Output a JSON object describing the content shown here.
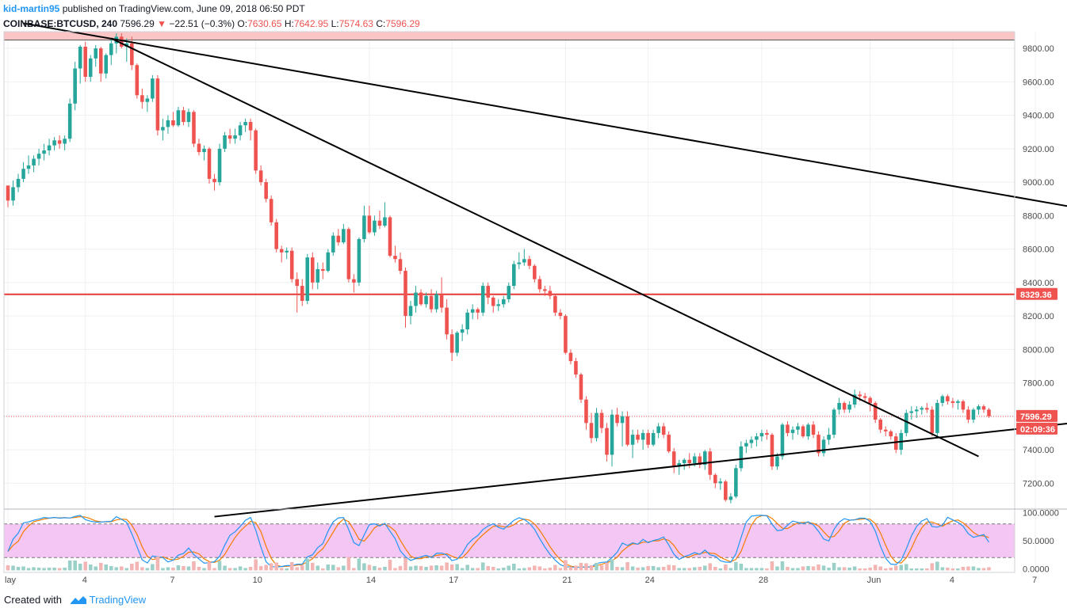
{
  "header": {
    "author": "kid-martin95",
    "published_text": "published on TradingView.com, June 09, 2018 06:50 PDT",
    "symbol": "COINBASE:BTCUSD, 240",
    "last": "7596.29",
    "change_arrow": "▼",
    "change": "−22.51 (−0.3%)",
    "o_label": "O:",
    "o_value": "7630.65",
    "h_label": "H:",
    "h_value": "7642.95",
    "l_label": "L:",
    "l_value": "7574.63",
    "c_label": "C:",
    "c_value": "7596.29"
  },
  "footer": {
    "created_with": "Created with",
    "brand": "TradingView",
    "logo_icon": "tradingview-logo-icon"
  },
  "colors": {
    "up": "#26a69a",
    "down": "#ef5350",
    "resistance_band": "#f9c5c5",
    "support_line": "#e53935",
    "stoch_k": "#2196f3",
    "stoch_d": "#f57c00",
    "stoch_band": "#f3c6f3",
    "volume": "#9ad0c8"
  },
  "chart_data": [
    {
      "type": "candlestick",
      "title": "COINBASE:BTCUSD, 240",
      "y_axis_side": "right",
      "ylim": [
        7050,
        9900
      ],
      "y_ticks": [
        "9800.00",
        "9600.00",
        "9400.00",
        "9200.00",
        "9000.00",
        "8800.00",
        "8600.00",
        "8400.00",
        "8200.00",
        "8000.00",
        "7800.00",
        "7600.00",
        "7400.00",
        "7200.00"
      ],
      "x_labels": [
        {
          "label": "lay",
          "index": 0
        },
        {
          "label": "4",
          "index": 15
        },
        {
          "label": "7",
          "index": 32
        },
        {
          "label": "10",
          "index": 48
        },
        {
          "label": "14",
          "index": 70
        },
        {
          "label": "17",
          "index": 86
        },
        {
          "label": "21",
          "index": 108
        },
        {
          "label": "24",
          "index": 124
        },
        {
          "label": "28",
          "index": 146
        },
        {
          "label": "Jun",
          "index": 167
        },
        {
          "label": "4",
          "index": 183
        },
        {
          "label": "7",
          "index": 199
        }
      ],
      "candles_approx": [
        [
          8980,
          8980,
          8850,
          8890
        ],
        [
          8890,
          9010,
          8860,
          8970
        ],
        [
          8970,
          9050,
          8940,
          9020
        ],
        [
          9020,
          9120,
          9000,
          9080
        ],
        [
          9080,
          9160,
          9050,
          9100
        ],
        [
          9100,
          9160,
          9060,
          9140
        ],
        [
          9140,
          9200,
          9100,
          9170
        ],
        [
          9170,
          9230,
          9130,
          9190
        ],
        [
          9190,
          9260,
          9160,
          9220
        ],
        [
          9220,
          9270,
          9190,
          9250
        ],
        [
          9250,
          9280,
          9200,
          9230
        ],
        [
          9230,
          9280,
          9190,
          9260
        ],
        [
          9260,
          9500,
          9240,
          9470
        ],
        [
          9470,
          9720,
          9430,
          9680
        ],
        [
          9680,
          9820,
          9590,
          9810
        ],
        [
          9810,
          9840,
          9600,
          9630
        ],
        [
          9630,
          9760,
          9600,
          9740
        ],
        [
          9740,
          9820,
          9690,
          9800
        ],
        [
          9800,
          9810,
          9600,
          9650
        ],
        [
          9650,
          9770,
          9620,
          9760
        ],
        [
          9760,
          9860,
          9700,
          9830
        ],
        [
          9830,
          9890,
          9770,
          9870
        ],
        [
          9870,
          9890,
          9800,
          9810
        ],
        [
          9810,
          9860,
          9720,
          9830
        ],
        [
          9830,
          9870,
          9670,
          9700
        ],
        [
          9700,
          9710,
          9500,
          9520
        ],
        [
          9520,
          9560,
          9440,
          9480
        ],
        [
          9480,
          9520,
          9420,
          9500
        ],
        [
          9500,
          9640,
          9480,
          9620
        ],
        [
          9620,
          9640,
          9280,
          9310
        ],
        [
          9310,
          9380,
          9250,
          9330
        ],
        [
          9330,
          9400,
          9290,
          9370
        ],
        [
          9370,
          9420,
          9330,
          9340
        ],
        [
          9340,
          9450,
          9330,
          9430
        ],
        [
          9430,
          9450,
          9340,
          9360
        ],
        [
          9360,
          9440,
          9330,
          9420
        ],
        [
          9420,
          9430,
          9210,
          9230
        ],
        [
          9230,
          9260,
          9160,
          9180
        ],
        [
          9180,
          9220,
          9130,
          9200
        ],
        [
          9200,
          9210,
          8990,
          9020
        ],
        [
          9020,
          9050,
          8950,
          9000
        ],
        [
          9000,
          9230,
          8980,
          9200
        ],
        [
          9200,
          9300,
          9180,
          9280
        ],
        [
          9280,
          9320,
          9230,
          9260
        ],
        [
          9260,
          9320,
          9230,
          9280
        ],
        [
          9280,
          9360,
          9250,
          9340
        ],
        [
          9340,
          9380,
          9300,
          9360
        ],
        [
          9360,
          9380,
          9250,
          9310
        ],
        [
          9310,
          9320,
          9050,
          9070
        ],
        [
          9070,
          9100,
          8980,
          9000
        ],
        [
          9000,
          9020,
          8880,
          8900
        ],
        [
          8900,
          8920,
          8740,
          8760
        ],
        [
          8760,
          8780,
          8580,
          8600
        ],
        [
          8600,
          8620,
          8520,
          8580
        ],
        [
          8580,
          8610,
          8540,
          8590
        ],
        [
          8590,
          8610,
          8400,
          8420
        ],
        [
          8420,
          8460,
          8220,
          8380
        ],
        [
          8380,
          8420,
          8260,
          8290
        ],
        [
          8290,
          8570,
          8270,
          8550
        ],
        [
          8550,
          8580,
          8360,
          8400
        ],
        [
          8400,
          8520,
          8360,
          8480
        ],
        [
          8480,
          8520,
          8420,
          8470
        ],
        [
          8470,
          8600,
          8460,
          8580
        ],
        [
          8580,
          8700,
          8560,
          8680
        ],
        [
          8680,
          8720,
          8620,
          8640
        ],
        [
          8640,
          8750,
          8630,
          8720
        ],
        [
          8720,
          8730,
          8400,
          8420
        ],
        [
          8420,
          8450,
          8340,
          8400
        ],
        [
          8400,
          8670,
          8380,
          8660
        ],
        [
          8660,
          8860,
          8640,
          8800
        ],
        [
          8800,
          8860,
          8690,
          8700
        ],
        [
          8700,
          8800,
          8680,
          8770
        ],
        [
          8770,
          8830,
          8720,
          8740
        ],
        [
          8740,
          8880,
          8730,
          8790
        ],
        [
          8790,
          8800,
          8550,
          8560
        ],
        [
          8560,
          8620,
          8520,
          8540
        ],
        [
          8540,
          8580,
          8450,
          8470
        ],
        [
          8470,
          8490,
          8130,
          8200
        ],
        [
          8200,
          8290,
          8150,
          8260
        ],
        [
          8260,
          8380,
          8220,
          8340
        ],
        [
          8340,
          8360,
          8260,
          8270
        ],
        [
          8270,
          8340,
          8250,
          8320
        ],
        [
          8320,
          8360,
          8220,
          8240
        ],
        [
          8240,
          8350,
          8220,
          8330
        ],
        [
          8330,
          8430,
          8220,
          8250
        ],
        [
          8250,
          8300,
          8060,
          8090
        ],
        [
          8090,
          8120,
          7930,
          7980
        ],
        [
          7980,
          8110,
          7960,
          8100
        ],
        [
          8100,
          8150,
          8050,
          8120
        ],
        [
          8120,
          8240,
          8090,
          8220
        ],
        [
          8220,
          8270,
          8180,
          8240
        ],
        [
          8240,
          8250,
          8180,
          8220
        ],
        [
          8220,
          8400,
          8200,
          8380
        ],
        [
          8380,
          8400,
          8270,
          8310
        ],
        [
          8310,
          8320,
          8220,
          8260
        ],
        [
          8260,
          8300,
          8230,
          8270
        ],
        [
          8270,
          8320,
          8250,
          8300
        ],
        [
          8300,
          8400,
          8280,
          8380
        ],
        [
          8380,
          8530,
          8360,
          8510
        ],
        [
          8510,
          8580,
          8480,
          8520
        ],
        [
          8520,
          8600,
          8500,
          8540
        ],
        [
          8540,
          8560,
          8480,
          8500
        ],
        [
          8500,
          8510,
          8400,
          8420
        ],
        [
          8420,
          8440,
          8340,
          8360
        ],
        [
          8360,
          8380,
          8320,
          8350
        ],
        [
          8350,
          8380,
          8300,
          8320
        ],
        [
          8320,
          8330,
          8200,
          8220
        ],
        [
          8220,
          8240,
          8180,
          8200
        ],
        [
          8200,
          8210,
          7970,
          7980
        ],
        [
          7980,
          8000,
          7910,
          7930
        ],
        [
          7930,
          7950,
          7830,
          7850
        ],
        [
          7850,
          7860,
          7680,
          7700
        ],
        [
          7700,
          7720,
          7520,
          7560
        ],
        [
          7560,
          7620,
          7440,
          7470
        ],
        [
          7470,
          7650,
          7450,
          7620
        ],
        [
          7620,
          7640,
          7500,
          7530
        ],
        [
          7530,
          7560,
          7330,
          7370
        ],
        [
          7370,
          7640,
          7300,
          7610
        ],
        [
          7610,
          7650,
          7540,
          7560
        ],
        [
          7560,
          7630,
          7420,
          7600
        ],
        [
          7600,
          7630,
          7420,
          7430
        ],
        [
          7430,
          7520,
          7350,
          7490
        ],
        [
          7490,
          7520,
          7440,
          7460
        ],
        [
          7460,
          7520,
          7400,
          7500
        ],
        [
          7500,
          7520,
          7410,
          7430
        ],
        [
          7430,
          7520,
          7420,
          7500
        ],
        [
          7500,
          7560,
          7470,
          7540
        ],
        [
          7540,
          7560,
          7470,
          7490
        ],
        [
          7490,
          7510,
          7380,
          7390
        ],
        [
          7390,
          7410,
          7260,
          7300
        ],
        [
          7300,
          7340,
          7250,
          7320
        ],
        [
          7320,
          7350,
          7280,
          7340
        ],
        [
          7340,
          7380,
          7290,
          7320
        ],
        [
          7320,
          7380,
          7300,
          7360
        ],
        [
          7360,
          7380,
          7290,
          7310
        ],
        [
          7310,
          7400,
          7280,
          7390
        ],
        [
          7390,
          7410,
          7220,
          7250
        ],
        [
          7250,
          7260,
          7170,
          7200
        ],
        [
          7200,
          7230,
          7160,
          7210
        ],
        [
          7210,
          7220,
          7090,
          7100
        ],
        [
          7100,
          7140,
          7080,
          7120
        ],
        [
          7120,
          7310,
          7110,
          7290
        ],
        [
          7290,
          7450,
          7270,
          7420
        ],
        [
          7420,
          7460,
          7380,
          7440
        ],
        [
          7440,
          7480,
          7410,
          7460
        ],
        [
          7460,
          7500,
          7420,
          7480
        ],
        [
          7480,
          7520,
          7450,
          7500
        ],
        [
          7500,
          7520,
          7460,
          7490
        ],
        [
          7490,
          7500,
          7280,
          7300
        ],
        [
          7300,
          7380,
          7280,
          7360
        ],
        [
          7360,
          7560,
          7340,
          7550
        ],
        [
          7550,
          7570,
          7480,
          7500
        ],
        [
          7500,
          7540,
          7460,
          7520
        ],
        [
          7520,
          7560,
          7490,
          7540
        ],
        [
          7540,
          7550,
          7470,
          7480
        ],
        [
          7480,
          7560,
          7460,
          7550
        ],
        [
          7550,
          7570,
          7470,
          7490
        ],
        [
          7490,
          7510,
          7360,
          7380
        ],
        [
          7380,
          7480,
          7360,
          7460
        ],
        [
          7460,
          7530,
          7430,
          7490
        ],
        [
          7490,
          7650,
          7470,
          7640
        ],
        [
          7640,
          7710,
          7610,
          7680
        ],
        [
          7680,
          7690,
          7620,
          7640
        ],
        [
          7640,
          7690,
          7620,
          7670
        ],
        [
          7670,
          7760,
          7650,
          7730
        ],
        [
          7730,
          7750,
          7690,
          7720
        ],
        [
          7720,
          7740,
          7690,
          7710
        ],
        [
          7710,
          7720,
          7630,
          7680
        ],
        [
          7680,
          7690,
          7560,
          7580
        ],
        [
          7580,
          7590,
          7500,
          7520
        ],
        [
          7520,
          7540,
          7480,
          7510
        ],
        [
          7510,
          7520,
          7460,
          7480
        ],
        [
          7480,
          7500,
          7380,
          7400
        ],
        [
          7400,
          7520,
          7370,
          7500
        ],
        [
          7500,
          7640,
          7480,
          7620
        ],
        [
          7620,
          7660,
          7580,
          7630
        ],
        [
          7630,
          7660,
          7590,
          7640
        ],
        [
          7640,
          7660,
          7610,
          7650
        ],
        [
          7650,
          7680,
          7620,
          7640
        ],
        [
          7640,
          7660,
          7480,
          7500
        ],
        [
          7500,
          7700,
          7480,
          7680
        ],
        [
          7680,
          7730,
          7660,
          7720
        ],
        [
          7720,
          7730,
          7670,
          7690
        ],
        [
          7690,
          7710,
          7650,
          7680
        ],
        [
          7680,
          7700,
          7640,
          7690
        ],
        [
          7690,
          7700,
          7620,
          7640
        ],
        [
          7640,
          7660,
          7560,
          7580
        ],
        [
          7580,
          7650,
          7560,
          7640
        ],
        [
          7640,
          7670,
          7610,
          7660
        ],
        [
          7660,
          7670,
          7620,
          7640
        ],
        [
          7640,
          7650,
          7590,
          7600
        ]
      ],
      "last_price_label": "7596.29",
      "countdown_label": "02:09:36",
      "horizontal_support": {
        "value": 8329.36,
        "label": "8329.36"
      },
      "resistance_band": {
        "from": 9850,
        "to": 9980
      },
      "trendlines": [
        {
          "x1": 3,
          "y1": 9950,
          "x2": 212,
          "y2": 8820
        },
        {
          "x1": 20,
          "y1": 9860,
          "x2": 188,
          "y2": 7360
        },
        {
          "x1": 40,
          "y1": 7000,
          "x2": 212,
          "y2": 7580
        }
      ]
    },
    {
      "type": "line",
      "title": "",
      "ylim": [
        -5,
        105
      ],
      "y_ticks": [
        "100.0000",
        "50.0000",
        "0.0000"
      ],
      "band": [
        20,
        80
      ],
      "series_count": 2
    }
  ]
}
